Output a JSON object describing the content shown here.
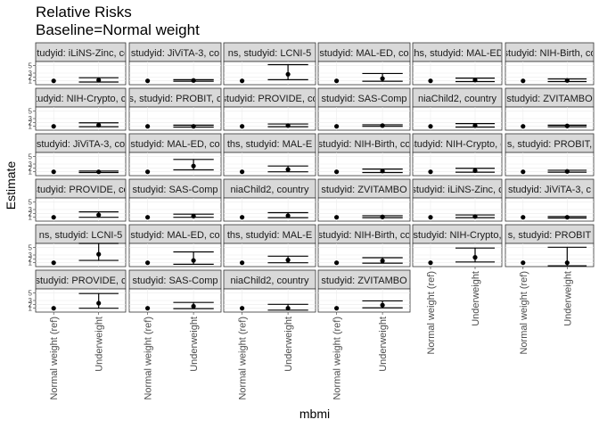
{
  "chart_data": {
    "type": "scatter",
    "title": "Relative Risks",
    "subtitle": "Baseline=Normal weight",
    "xlabel": "mbmi",
    "ylabel": "Estimate",
    "categories": [
      "Normal weight (ref)",
      "Underweight"
    ],
    "ylim": [
      0,
      6
    ],
    "y_ticks": [
      1,
      2,
      3,
      5
    ],
    "grid": true,
    "panels": [
      {
        "strip": "studyid: iLiNS-Zinc, co",
        "points": [
          {
            "est": 1,
            "lo": 1,
            "hi": 1
          },
          {
            "est": 1.2,
            "lo": 0.7,
            "hi": 1.8
          }
        ]
      },
      {
        "strip": "studyid: JiViTA-3, co",
        "points": [
          {
            "est": 1,
            "lo": 1,
            "hi": 1
          },
          {
            "est": 1.1,
            "lo": 0.9,
            "hi": 1.3
          }
        ]
      },
      {
        "strip": "ns, studyid: LCNI-5",
        "points": [
          {
            "est": 1,
            "lo": 1,
            "hi": 1
          },
          {
            "est": 2.7,
            "lo": 1.3,
            "hi": 5.2
          }
        ]
      },
      {
        "strip": "studyid: MAL-ED, co",
        "points": [
          {
            "est": 1,
            "lo": 1,
            "hi": 1
          },
          {
            "est": 1.6,
            "lo": 0.9,
            "hi": 2.9
          }
        ]
      },
      {
        "strip": "ths, studyid: MAL-ED",
        "points": [
          {
            "est": 1,
            "lo": 1,
            "hi": 1
          },
          {
            "est": 1.2,
            "lo": 0.8,
            "hi": 1.7
          }
        ]
      },
      {
        "strip": "studyid: NIH-Birth, co",
        "points": [
          {
            "est": 1,
            "lo": 1,
            "hi": 1
          },
          {
            "est": 1.1,
            "lo": 0.8,
            "hi": 1.5
          }
        ]
      },
      {
        "strip": "studyid: NIH-Crypto, co",
        "points": [
          {
            "est": 1,
            "lo": 1,
            "hi": 1
          },
          {
            "est": 1.3,
            "lo": 0.9,
            "hi": 1.9
          }
        ]
      },
      {
        "strip": "s, studyid: PROBIT, c",
        "points": [
          {
            "est": 1,
            "lo": 1,
            "hi": 1
          },
          {
            "est": 1.0,
            "lo": 0.8,
            "hi": 1.3
          }
        ]
      },
      {
        "strip": "studyid: PROVIDE, co",
        "points": [
          {
            "est": 1,
            "lo": 1,
            "hi": 1
          },
          {
            "est": 1.2,
            "lo": 0.9,
            "hi": 1.6
          }
        ]
      },
      {
        "strip": "studyid: SAS-Comp",
        "points": [
          {
            "est": 1,
            "lo": 1,
            "hi": 1
          },
          {
            "est": 1.2,
            "lo": 1.0,
            "hi": 1.4
          }
        ]
      },
      {
        "strip": "niaChild2, country",
        "points": [
          {
            "est": 1,
            "lo": 1,
            "hi": 1
          },
          {
            "est": 1.2,
            "lo": 0.8,
            "hi": 1.7
          }
        ]
      },
      {
        "strip": "studyid: ZVITAMBO",
        "points": [
          {
            "est": 1,
            "lo": 1,
            "hi": 1
          },
          {
            "est": 1.1,
            "lo": 0.9,
            "hi": 1.3
          }
        ]
      },
      {
        "strip": "studyid: JiViTA-3, co",
        "points": [
          {
            "est": 1,
            "lo": 1,
            "hi": 1
          },
          {
            "est": 1.0,
            "lo": 0.8,
            "hi": 1.2
          }
        ]
      },
      {
        "strip": "studyid: MAL-ED, co",
        "points": [
          {
            "est": 1,
            "lo": 1,
            "hi": 1
          },
          {
            "est": 2.5,
            "lo": 1.5,
            "hi": 4.2
          }
        ]
      },
      {
        "strip": "ths, studyid: MAL-E",
        "points": [
          {
            "est": 1,
            "lo": 1,
            "hi": 1
          },
          {
            "est": 1.6,
            "lo": 1.0,
            "hi": 2.5
          }
        ]
      },
      {
        "strip": "studyid: NIH-Birth, co",
        "points": [
          {
            "est": 1,
            "lo": 1,
            "hi": 1
          },
          {
            "est": 1.2,
            "lo": 0.8,
            "hi": 1.7
          }
        ]
      },
      {
        "strip": "studyid: NIH-Crypto, c",
        "points": [
          {
            "est": 1,
            "lo": 1,
            "hi": 1
          },
          {
            "est": 1.3,
            "lo": 0.9,
            "hi": 1.9
          }
        ]
      },
      {
        "strip": "s, studyid: PROBIT,",
        "points": [
          {
            "est": 1,
            "lo": 1,
            "hi": 1
          },
          {
            "est": 1.1,
            "lo": 0.9,
            "hi": 1.4
          }
        ]
      },
      {
        "strip": "studyid: PROVIDE, co",
        "points": [
          {
            "est": 1,
            "lo": 1,
            "hi": 1
          },
          {
            "est": 1.6,
            "lo": 1.0,
            "hi": 2.4
          }
        ]
      },
      {
        "strip": "studyid: SAS-Comp",
        "points": [
          {
            "est": 1,
            "lo": 1,
            "hi": 1
          },
          {
            "est": 1.3,
            "lo": 1.0,
            "hi": 1.8
          }
        ]
      },
      {
        "strip": "niaChild2, country",
        "points": [
          {
            "est": 1,
            "lo": 1,
            "hi": 1
          },
          {
            "est": 1.4,
            "lo": 0.9,
            "hi": 2.2
          }
        ]
      },
      {
        "strip": "studyid: ZVITAMBO",
        "points": [
          {
            "est": 1,
            "lo": 1,
            "hi": 1
          },
          {
            "est": 1.1,
            "lo": 0.9,
            "hi": 1.4
          }
        ]
      },
      {
        "strip": "studyid: iLiNS-Zinc, c",
        "points": [
          {
            "est": 1,
            "lo": 1,
            "hi": 1
          },
          {
            "est": 1.2,
            "lo": 0.9,
            "hi": 1.6
          }
        ]
      },
      {
        "strip": "studyid: JiViTA-3, c",
        "points": [
          {
            "est": 1,
            "lo": 1,
            "hi": 1
          },
          {
            "est": 1.0,
            "lo": 0.8,
            "hi": 1.2
          }
        ]
      },
      {
        "strip": "ns, studyid: LCNI-5",
        "points": [
          {
            "est": 1,
            "lo": 1,
            "hi": 1
          },
          {
            "est": 3.2,
            "lo": 1.6,
            "hi": 6.0
          }
        ]
      },
      {
        "strip": "studyid: MAL-ED, co",
        "points": [
          {
            "est": 1,
            "lo": 1,
            "hi": 1
          },
          {
            "est": 1.6,
            "lo": 0.6,
            "hi": 3.8
          }
        ]
      },
      {
        "strip": "ths, studyid: MAL-E",
        "points": [
          {
            "est": 1,
            "lo": 1,
            "hi": 1
          },
          {
            "est": 1.7,
            "lo": 1.0,
            "hi": 2.7
          }
        ]
      },
      {
        "strip": "studyid: NIH-Birth, co",
        "points": [
          {
            "est": 1,
            "lo": 1,
            "hi": 1
          },
          {
            "est": 1.5,
            "lo": 0.9,
            "hi": 2.3
          }
        ]
      },
      {
        "strip": "studyid: NIH-Crypto,",
        "points": [
          {
            "est": 1,
            "lo": 1,
            "hi": 1
          },
          {
            "est": 2.4,
            "lo": 1.2,
            "hi": 4.8
          }
        ]
      },
      {
        "strip": "s, studyid: PROBIT",
        "points": [
          {
            "est": 1,
            "lo": 1,
            "hi": 1
          },
          {
            "est": 1.0,
            "lo": 0.2,
            "hi": 5.0
          }
        ]
      },
      {
        "strip": "studyid: PROVIDE, c",
        "points": [
          {
            "est": 1,
            "lo": 1,
            "hi": 1
          },
          {
            "est": 2.3,
            "lo": 1.0,
            "hi": 4.8
          }
        ]
      },
      {
        "strip": "studyid: SAS-Comp",
        "points": [
          {
            "est": 1,
            "lo": 1,
            "hi": 1
          },
          {
            "est": 1.5,
            "lo": 0.9,
            "hi": 2.5
          }
        ]
      },
      {
        "strip": "niaChild2, country",
        "points": [
          {
            "est": 1,
            "lo": 1,
            "hi": 1
          },
          {
            "est": 1.0,
            "lo": 0.5,
            "hi": 2.0
          }
        ]
      },
      {
        "strip": "studyid: ZVITAMBO",
        "points": [
          {
            "est": 1,
            "lo": 1,
            "hi": 1
          },
          {
            "est": 1.8,
            "lo": 1.1,
            "hi": 2.9
          }
        ]
      }
    ]
  }
}
